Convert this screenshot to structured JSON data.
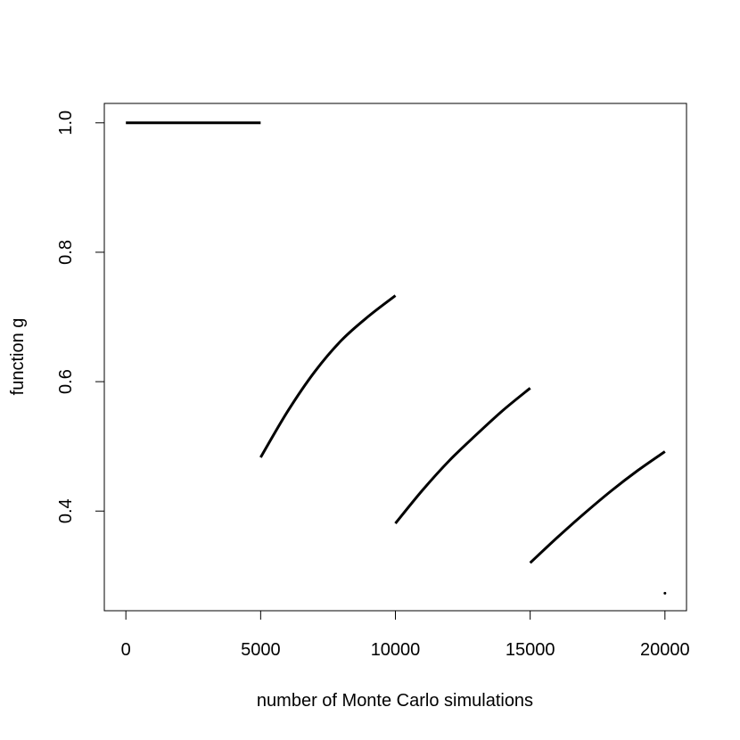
{
  "chart_data": {
    "type": "line",
    "title": "",
    "xlabel": "number of Monte Carlo simulations",
    "ylabel": "function g",
    "xlim": [
      -800,
      20800
    ],
    "ylim": [
      0.246,
      1.03
    ],
    "xticks": [
      0,
      5000,
      10000,
      15000,
      20000
    ],
    "xtick_labels": [
      "0",
      "5000",
      "10000",
      "15000",
      "20000"
    ],
    "yticks": [
      0.4,
      0.6,
      0.8,
      1.0
    ],
    "ytick_labels": [
      "0.4",
      "0.6",
      "0.8",
      "1.0"
    ],
    "grid": false,
    "series": [
      {
        "x": [
          0,
          5000
        ],
        "y": [
          1.0,
          1.0
        ]
      },
      {
        "x": [
          5000,
          6000,
          7000,
          8000,
          9000,
          10000
        ],
        "y": [
          0.483,
          0.554,
          0.615,
          0.664,
          0.701,
          0.733
        ]
      },
      {
        "x": [
          10000,
          11000,
          12000,
          13000,
          14000,
          15000
        ],
        "y": [
          0.381,
          0.432,
          0.478,
          0.518,
          0.556,
          0.59
        ]
      },
      {
        "x": [
          15000,
          16000,
          17000,
          18000,
          19000,
          20000
        ],
        "y": [
          0.32,
          0.359,
          0.396,
          0.431,
          0.463,
          0.492
        ]
      },
      {
        "x": [
          20000
        ],
        "y": [
          0.273
        ]
      }
    ]
  }
}
